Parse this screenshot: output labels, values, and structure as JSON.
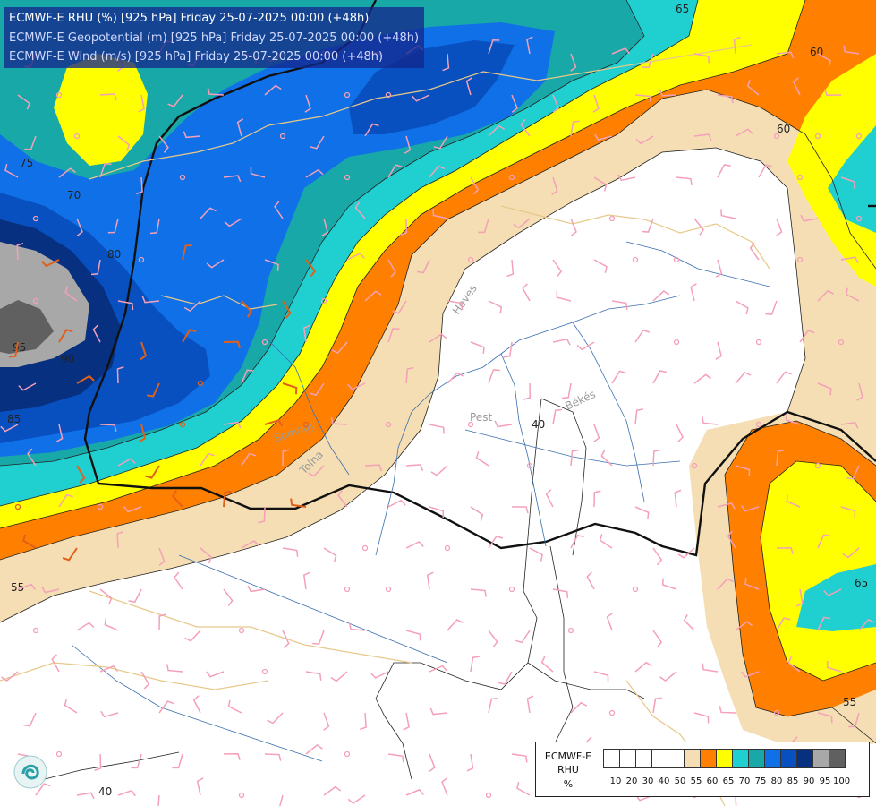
{
  "header": {
    "line1": "ECMWF-E RHU (%) [925 hPa] Friday 25-07-2025 00:00 (+48h)",
    "line2": "ECMWF-E Geopotential (m) [925 hPa] Friday 25-07-2025 00:00 (+48h)",
    "line3": "ECMWF-E Wind (m/s) [925 hPa] Friday 25-07-2025 00:00 (+48h)"
  },
  "legend": {
    "name_line1": "ECMWF-E",
    "name_line2": "RHU",
    "name_line3": "%",
    "colors": [
      "#ffffff",
      "#ffffff",
      "#ffffff",
      "#ffffff",
      "#ffffff",
      "#f5deb3",
      "#ff8000",
      "#ffff00",
      "#20d0d0",
      "#18a8a8",
      "#1070e8",
      "#0850c0",
      "#083080",
      "#a8a8a8",
      "#606060"
    ],
    "ticks": [
      "10",
      "20",
      "30",
      "40",
      "50",
      "55",
      "60",
      "65",
      "70",
      "75",
      "80",
      "85",
      "90",
      "95",
      "100"
    ]
  },
  "contour_labels": {
    "c65_top": "65",
    "c60_right": "60",
    "c60_right2": "60",
    "c73_left": "75",
    "c70_left": "70",
    "c80_left": "80",
    "c90_left": "90",
    "c95_left": "95",
    "c85_left": "85",
    "c55_left": "55",
    "c40_center": "40",
    "c65_right": "65",
    "c55_right": "55",
    "c40_bottom": "40"
  },
  "places": {
    "pest": "Pest",
    "bekes": "Békés",
    "heves": "Heves",
    "somogy": "Somogy",
    "tolna": "Tolna"
  },
  "colors": {
    "white": "#ffffff",
    "tan": "#f5deb3",
    "orange": "#ff8000",
    "yellow": "#ffff00",
    "cyan": "#20d0d0",
    "teal": "#18a8a8",
    "blue": "#1070e8",
    "mid_blue": "#0850c0",
    "dark_blue": "#083080",
    "grey": "#a8a8a8",
    "dark_grey": "#606060",
    "border_tan": "#e8c88a",
    "river": "#3a6fb0",
    "wind_barb": "#f4a0b8",
    "wind_barb_strong": "#e0601a"
  }
}
